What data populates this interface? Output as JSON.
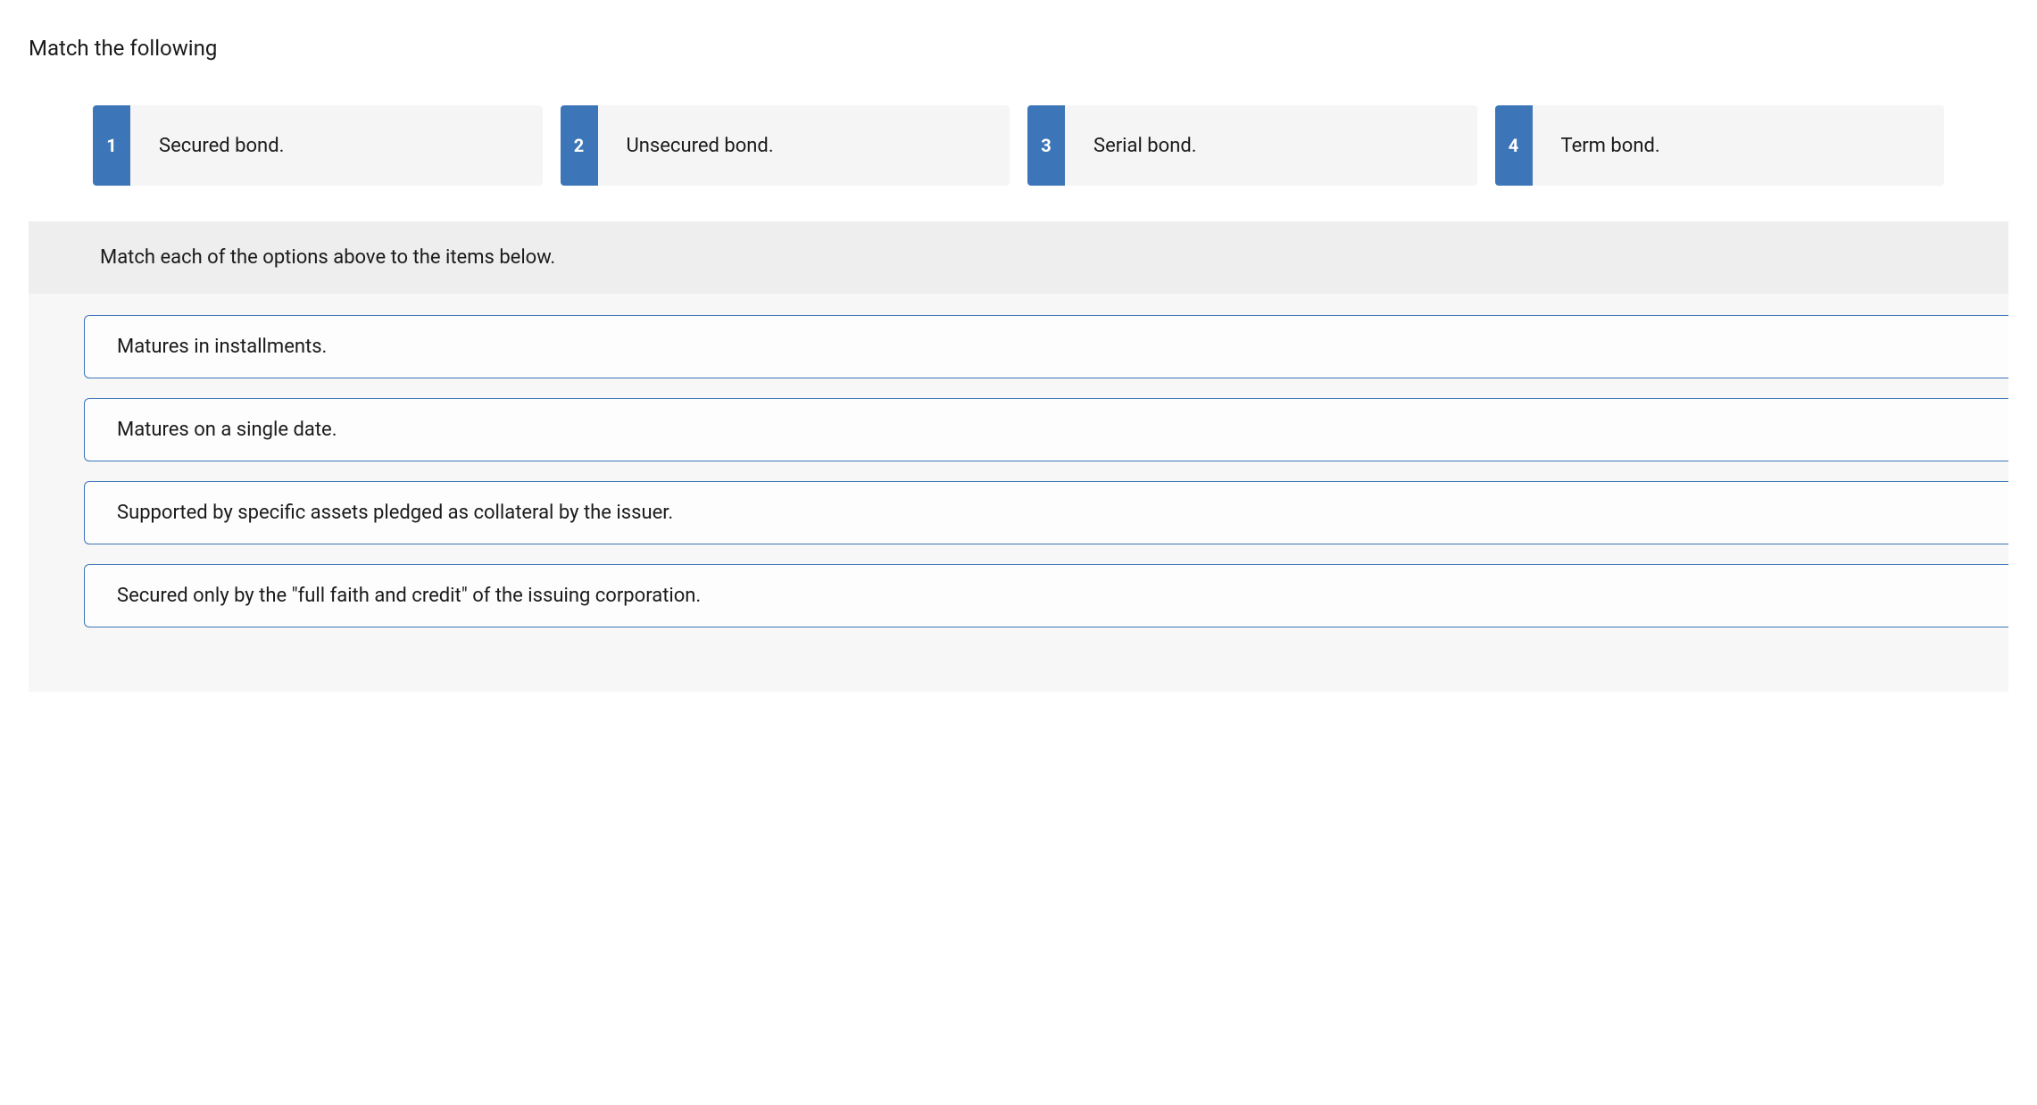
{
  "question": {
    "title": "Match the following",
    "instruction": "Match each of the options above to the items below."
  },
  "options": [
    {
      "number": "1",
      "label": "Secured bond."
    },
    {
      "number": "2",
      "label": "Unsecured bond."
    },
    {
      "number": "3",
      "label": "Serial bond."
    },
    {
      "number": "4",
      "label": "Term bond."
    }
  ],
  "items": [
    "Matures in installments.",
    "Matures on a single date.",
    "Supported by specific assets pledged as collateral by the issuer.",
    "Secured only by the \"full faith and credit\" of the issuing corporation."
  ],
  "colors": {
    "accent": "#3d76b8",
    "option_bg": "#f5f5f5",
    "section_bg": "#f7f7f7",
    "instruction_bg": "#eeeeee",
    "text": "#1a1a1a",
    "white": "#ffffff"
  }
}
